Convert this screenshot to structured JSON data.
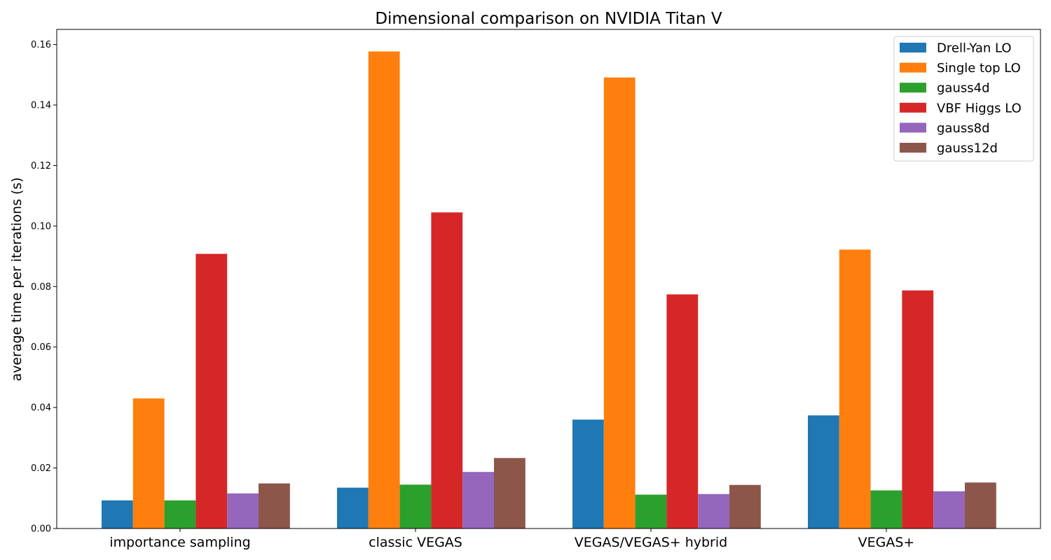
{
  "chart_data": {
    "type": "bar",
    "title": "Dimensional comparison on NVIDIA Titan V",
    "xlabel": "",
    "ylabel": "average time per iterations (s)",
    "ylim": [
      0,
      0.165
    ],
    "yticks": [
      0.0,
      0.02,
      0.04,
      0.06,
      0.08,
      0.1,
      0.12,
      0.14,
      0.16
    ],
    "ytick_labels": [
      "0.00",
      "0.02",
      "0.04",
      "0.06",
      "0.08",
      "0.10",
      "0.12",
      "0.14",
      "0.16"
    ],
    "grid": false,
    "legend_position": "top-right",
    "categories": [
      "importance sampling",
      "classic VEGAS",
      "VEGAS/VEGAS+ hybrid",
      "VEGAS+"
    ],
    "series": [
      {
        "name": "Drell-Yan LO",
        "color": "#1f77b4",
        "values": [
          0.0093,
          0.0135,
          0.036,
          0.0374
        ]
      },
      {
        "name": "Single top LO",
        "color": "#ff7f0e",
        "values": [
          0.043,
          0.1577,
          0.1491,
          0.0922
        ]
      },
      {
        "name": "gauss4d",
        "color": "#2ca02c",
        "values": [
          0.0093,
          0.0145,
          0.0112,
          0.0126
        ]
      },
      {
        "name": "VBF Higgs LO",
        "color": "#d62728",
        "values": [
          0.0908,
          0.1045,
          0.0774,
          0.0787
        ]
      },
      {
        "name": "gauss8d",
        "color": "#9467bd",
        "values": [
          0.0116,
          0.0187,
          0.0114,
          0.0123
        ]
      },
      {
        "name": "gauss12d",
        "color": "#8c564b",
        "values": [
          0.0149,
          0.0233,
          0.0144,
          0.0152
        ]
      }
    ]
  }
}
